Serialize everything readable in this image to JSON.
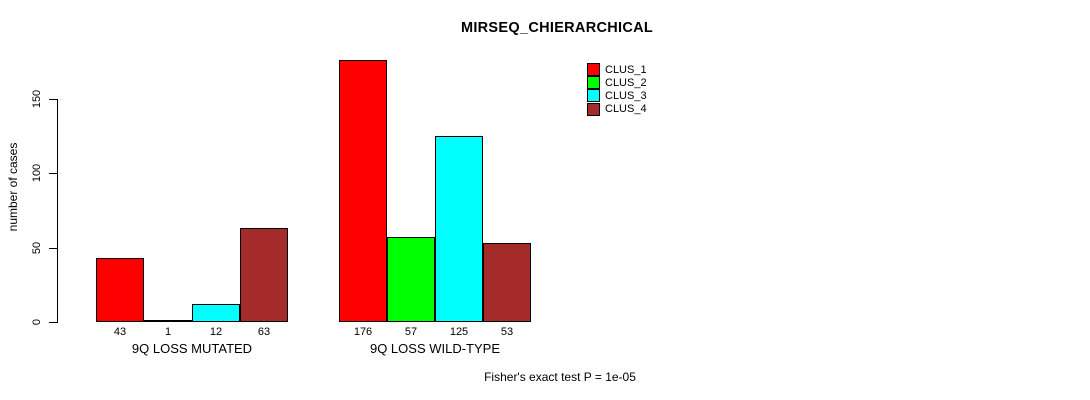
{
  "chart_data": {
    "type": "bar",
    "title": "MIRSEQ_CHIERARCHICAL",
    "ylabel": "number of cases",
    "xlabel": "",
    "footer": "Fisher's exact test P = 1e-05",
    "categories": [
      "9Q LOSS MUTATED",
      "9Q LOSS WILD-TYPE"
    ],
    "series": [
      {
        "name": "CLUS_1",
        "color": "#ff0000",
        "values": [
          43,
          176
        ]
      },
      {
        "name": "CLUS_2",
        "color": "#00ff00",
        "values": [
          1,
          57
        ]
      },
      {
        "name": "CLUS_3",
        "color": "#00ffff",
        "values": [
          12,
          125
        ]
      },
      {
        "name": "CLUS_4",
        "color": "#a52a2a",
        "values": [
          63,
          53
        ]
      }
    ],
    "bar_value_labels": [
      [
        43,
        1,
        12,
        63
      ],
      [
        176,
        57,
        125,
        53
      ]
    ],
    "yticks": [
      0,
      50,
      100,
      150
    ],
    "ylim": [
      0,
      176
    ],
    "grid": false,
    "legend_position": "top-right",
    "background_color": "#ffffff",
    "bar_border_color": "#000000"
  }
}
